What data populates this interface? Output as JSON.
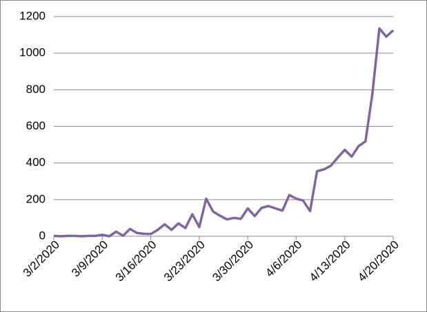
{
  "chart_data": {
    "type": "line",
    "categories": [
      "3/2/2020",
      null,
      null,
      null,
      null,
      null,
      null,
      "3/9/2020",
      null,
      null,
      null,
      null,
      null,
      null,
      "3/16/2020",
      null,
      null,
      null,
      null,
      null,
      null,
      "3/23/2020",
      null,
      null,
      null,
      null,
      null,
      null,
      "3/30/2020",
      null,
      null,
      null,
      null,
      null,
      null,
      "4/6/2020",
      null,
      null,
      null,
      null,
      null,
      null,
      "4/13/2020",
      null,
      null,
      null,
      null,
      null,
      null,
      "4/20/2020"
    ],
    "series": [
      {
        "color": "#8064a2",
        "values": [
          2,
          0,
          2,
          2,
          0,
          2,
          2,
          8,
          0,
          25,
          3,
          40,
          18,
          13,
          12,
          35,
          65,
          35,
          70,
          45,
          120,
          50,
          205,
          135,
          112,
          92,
          100,
          95,
          152,
          110,
          155,
          165,
          152,
          140,
          225,
          205,
          195,
          137,
          355,
          365,
          385,
          430,
          472,
          435,
          492,
          518,
          780,
          1135,
          1090,
          1125
        ]
      }
    ],
    "ylim": [
      0,
      1200
    ],
    "yticks": [
      0,
      200,
      400,
      600,
      800,
      1000,
      1200
    ],
    "grid": true
  }
}
